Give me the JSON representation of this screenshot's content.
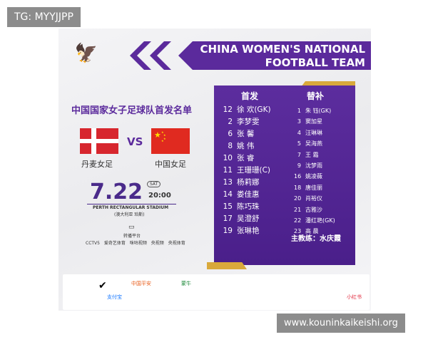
{
  "watermarks": {
    "top": "TG: MYYJJPP",
    "bottom": "www.kouninkaikeishi.org"
  },
  "header": {
    "line1": "CHINA WOMEN'S NATIONAL",
    "line2": "FOOTBALL TEAM"
  },
  "title": "中国国家女子足球队首发名单",
  "match": {
    "home": "丹麦女足",
    "vs": "VS",
    "away": "中国女足",
    "date": "7.22",
    "day": "SAT",
    "time": "20:00",
    "venue": "PERTH RECTANGULAR STADIUM",
    "venue_cn": "(澳大利亚 珀斯)",
    "broadcast_label": "转播平台",
    "broadcasters": [
      "CCTV5",
      "爱奇艺体育",
      "咪咕视频",
      "央视频",
      "央视体育"
    ]
  },
  "colors": {
    "purple": "#5b2a9c",
    "gold": "#d9a93b",
    "red": "#e02a20"
  },
  "starters_title": "首发",
  "starters": [
    {
      "n": "12",
      "name": "徐 欢(GK)"
    },
    {
      "n": "2",
      "name": "李梦雯"
    },
    {
      "n": "6",
      "name": "张 馨"
    },
    {
      "n": "8",
      "name": "姚 伟"
    },
    {
      "n": "10",
      "name": "张 睿"
    },
    {
      "n": "11",
      "name": "王珊珊(C)"
    },
    {
      "n": "13",
      "name": "杨莉娜"
    },
    {
      "n": "14",
      "name": "娄佳惠"
    },
    {
      "n": "15",
      "name": "陈巧珠"
    },
    {
      "n": "17",
      "name": "吴澄舒"
    },
    {
      "n": "19",
      "name": "张琳艳"
    }
  ],
  "subs_title": "替补",
  "subs": [
    {
      "n": "1",
      "name": "朱 钰(GK)"
    },
    {
      "n": "3",
      "name": "窦加星"
    },
    {
      "n": "4",
      "name": "汪琳琳"
    },
    {
      "n": "5",
      "name": "吴海燕"
    },
    {
      "n": "7",
      "name": "王 霜"
    },
    {
      "n": "9",
      "name": "沈梦雨"
    },
    {
      "n": "16",
      "name": "姚凌薇"
    },
    {
      "n": "18",
      "name": "唐佳丽"
    },
    {
      "n": "20",
      "name": "肖裕仪"
    },
    {
      "n": "21",
      "name": "古雅沙"
    },
    {
      "n": "22",
      "name": "潘红艳(GK)"
    },
    {
      "n": "23",
      "name": "高 晨"
    }
  ],
  "coach": "主教练：水庆霞",
  "sponsors": [
    "中国平安",
    "蒙牛",
    "支付宝",
    "小红书"
  ]
}
